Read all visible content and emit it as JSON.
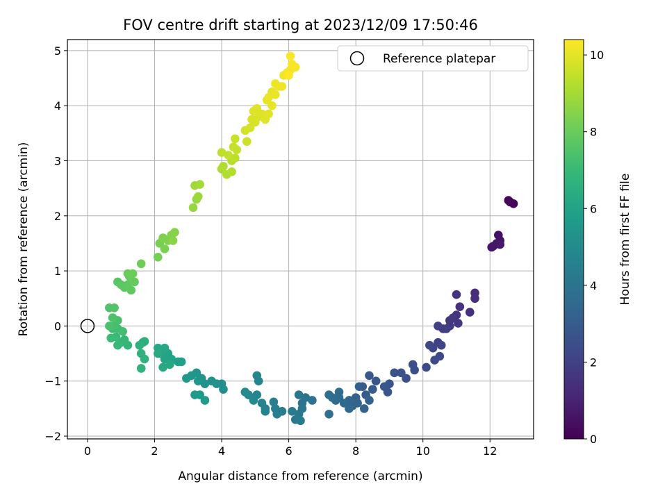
{
  "chart_data": {
    "type": "scatter",
    "title": "FOV centre drift starting at 2023/12/09 17:50:46",
    "xlabel": "Angular distance from reference (arcmin)",
    "ylabel": "Rotation from reference (arcmin)",
    "xlim": [
      -0.6,
      13.3
    ],
    "ylim": [
      -2.05,
      5.2
    ],
    "xticks": [
      0,
      2,
      4,
      6,
      8,
      10,
      12
    ],
    "yticks": [
      -2,
      -1,
      0,
      1,
      2,
      3,
      4,
      5
    ],
    "grid": true,
    "legend": {
      "placement": "top-right",
      "entries": [
        "Reference platepar"
      ]
    },
    "reference_point": {
      "name": "Reference platepar",
      "x": 0,
      "y": 0
    },
    "colorbar": {
      "label": "Hours from first FF file",
      "colormap": "viridis",
      "range": [
        0,
        10.4
      ],
      "ticks": [
        0,
        2,
        4,
        6,
        8,
        10
      ]
    },
    "points": [
      [
        12.6,
        2.25,
        0.1
      ],
      [
        12.7,
        2.22,
        0.15
      ],
      [
        12.55,
        2.28,
        0.2
      ],
      [
        12.25,
        1.65,
        0.45
      ],
      [
        12.3,
        1.55,
        0.5
      ],
      [
        12.1,
        1.45,
        0.55
      ],
      [
        12.2,
        1.5,
        0.6
      ],
      [
        12.05,
        1.43,
        0.65
      ],
      [
        12.3,
        1.48,
        0.7
      ],
      [
        11.55,
        0.6,
        1.3
      ],
      [
        11.55,
        0.5,
        1.35
      ],
      [
        11.4,
        0.25,
        1.4
      ],
      [
        11.1,
        0.35,
        1.45
      ],
      [
        11.0,
        0.57,
        1.5
      ],
      [
        11.0,
        0.2,
        1.6
      ],
      [
        10.9,
        0.15,
        1.65
      ],
      [
        10.8,
        0.1,
        1.7
      ],
      [
        11.05,
        0.05,
        1.75
      ],
      [
        10.8,
        0.0,
        1.8
      ],
      [
        10.6,
        -0.05,
        1.9
      ],
      [
        10.7,
        -0.05,
        1.95
      ],
      [
        10.45,
        0.0,
        2.0
      ],
      [
        10.45,
        -0.3,
        2.05
      ],
      [
        10.55,
        -0.35,
        2.1
      ],
      [
        10.3,
        -0.4,
        2.15
      ],
      [
        10.2,
        -0.35,
        2.2
      ],
      [
        10.5,
        -0.55,
        2.25
      ],
      [
        10.35,
        -0.62,
        2.3
      ],
      [
        10.1,
        -0.75,
        2.4
      ],
      [
        9.75,
        -0.8,
        2.45
      ],
      [
        9.7,
        -0.7,
        2.5
      ],
      [
        9.5,
        -0.95,
        2.55
      ],
      [
        9.35,
        -0.85,
        2.6
      ],
      [
        9.15,
        -0.85,
        2.65
      ],
      [
        9.0,
        -1.05,
        2.7
      ],
      [
        8.95,
        -1.2,
        2.75
      ],
      [
        8.85,
        -1.1,
        2.8
      ],
      [
        8.6,
        -1.0,
        2.85
      ],
      [
        8.4,
        -0.9,
        2.9
      ],
      [
        8.5,
        -1.15,
        2.95
      ],
      [
        8.3,
        -1.25,
        3.0
      ],
      [
        8.2,
        -1.1,
        3.05
      ],
      [
        8.1,
        -1.1,
        3.1
      ],
      [
        8.0,
        -1.3,
        3.15
      ],
      [
        8.4,
        -1.35,
        3.2
      ],
      [
        8.25,
        -1.5,
        3.25
      ],
      [
        8.05,
        -1.4,
        3.3
      ],
      [
        7.9,
        -1.45,
        3.35
      ],
      [
        7.8,
        -1.35,
        3.4
      ],
      [
        7.8,
        -1.5,
        3.45
      ],
      [
        7.65,
        -1.4,
        3.5
      ],
      [
        7.5,
        -1.3,
        3.55
      ],
      [
        7.4,
        -1.35,
        3.6
      ],
      [
        7.5,
        -1.2,
        3.65
      ],
      [
        7.3,
        -1.3,
        3.7
      ],
      [
        7.2,
        -1.25,
        3.75
      ],
      [
        7.2,
        -1.6,
        3.8
      ],
      [
        6.7,
        -1.35,
        3.9
      ],
      [
        6.5,
        -1.3,
        3.95
      ],
      [
        6.4,
        -1.4,
        4.0
      ],
      [
        6.3,
        -1.25,
        4.05
      ],
      [
        6.4,
        -1.5,
        4.1
      ],
      [
        6.3,
        -1.6,
        4.15
      ],
      [
        6.2,
        -1.7,
        4.2
      ],
      [
        6.35,
        -1.72,
        4.25
      ],
      [
        6.1,
        -1.55,
        4.3
      ],
      [
        5.8,
        -1.55,
        4.35
      ],
      [
        5.65,
        -1.6,
        4.4
      ],
      [
        5.55,
        -1.38,
        4.45
      ],
      [
        5.6,
        -1.5,
        4.5
      ],
      [
        5.3,
        -1.5,
        4.55
      ],
      [
        5.3,
        -1.55,
        4.6
      ],
      [
        5.2,
        -1.4,
        4.65
      ],
      [
        5.05,
        -1.25,
        4.7
      ],
      [
        5.1,
        -1.0,
        4.75
      ],
      [
        5.05,
        -0.9,
        4.8
      ],
      [
        4.95,
        -1.35,
        4.85
      ],
      [
        4.8,
        -1.25,
        4.9
      ],
      [
        4.7,
        -1.2,
        4.95
      ],
      [
        4.0,
        -1.05,
        5.1
      ],
      [
        4.05,
        -1.15,
        5.15
      ],
      [
        3.85,
        -1.05,
        5.2
      ],
      [
        3.7,
        -1.0,
        5.25
      ],
      [
        3.5,
        -1.05,
        5.3
      ],
      [
        3.4,
        -0.95,
        5.35
      ],
      [
        3.25,
        -0.85,
        5.4
      ],
      [
        3.3,
        -1.0,
        5.45
      ],
      [
        3.1,
        -0.9,
        5.5
      ],
      [
        2.95,
        -0.95,
        5.55
      ],
      [
        3.2,
        -1.25,
        5.6
      ],
      [
        3.35,
        -1.25,
        5.65
      ],
      [
        3.5,
        -1.35,
        5.7
      ],
      [
        2.8,
        -0.65,
        5.85
      ],
      [
        2.7,
        -0.65,
        5.9
      ],
      [
        2.5,
        -0.6,
        5.95
      ],
      [
        2.4,
        -0.5,
        6.0
      ],
      [
        2.3,
        -0.6,
        6.05
      ],
      [
        2.2,
        -0.5,
        6.1
      ],
      [
        2.1,
        -0.4,
        6.15
      ],
      [
        2.3,
        -0.4,
        6.2
      ],
      [
        2.45,
        -0.7,
        6.25
      ],
      [
        2.25,
        -0.75,
        6.3
      ],
      [
        2.1,
        -0.5,
        6.35
      ],
      [
        1.65,
        -0.3,
        6.5
      ],
      [
        1.7,
        -0.28,
        6.55
      ],
      [
        1.55,
        -0.35,
        6.6
      ],
      [
        1.6,
        -0.5,
        6.65
      ],
      [
        1.7,
        -0.6,
        6.7
      ],
      [
        1.6,
        -0.77,
        6.75
      ],
      [
        1.2,
        -0.35,
        6.85
      ],
      [
        1.1,
        -0.25,
        6.9
      ],
      [
        1.0,
        -0.3,
        6.95
      ],
      [
        0.9,
        -0.35,
        7.0
      ],
      [
        0.85,
        -0.2,
        7.05
      ],
      [
        0.7,
        -0.22,
        7.1
      ],
      [
        0.75,
        -0.05,
        7.15
      ],
      [
        0.9,
        -0.05,
        7.2
      ],
      [
        1.05,
        -0.1,
        7.25
      ],
      [
        0.8,
        0.0,
        7.3
      ],
      [
        0.9,
        0.1,
        7.35
      ],
      [
        0.65,
        0.0,
        7.4
      ],
      [
        0.75,
        0.15,
        7.45
      ],
      [
        0.65,
        0.33,
        7.5
      ],
      [
        0.8,
        0.33,
        7.55
      ],
      [
        0.9,
        0.8,
        7.65
      ],
      [
        1.0,
        0.75,
        7.7
      ],
      [
        1.1,
        0.7,
        7.75
      ],
      [
        1.2,
        0.75,
        7.8
      ],
      [
        1.3,
        0.65,
        7.85
      ],
      [
        1.4,
        0.8,
        7.9
      ],
      [
        1.25,
        0.9,
        7.95
      ],
      [
        1.2,
        0.95,
        8.0
      ],
      [
        1.35,
        0.95,
        8.05
      ],
      [
        1.6,
        1.13,
        8.1
      ],
      [
        2.1,
        1.25,
        8.2
      ],
      [
        2.15,
        1.5,
        8.25
      ],
      [
        2.3,
        1.4,
        8.3
      ],
      [
        2.25,
        1.6,
        8.35
      ],
      [
        2.4,
        1.55,
        8.4
      ],
      [
        2.5,
        1.65,
        8.45
      ],
      [
        2.6,
        1.7,
        8.5
      ],
      [
        2.55,
        1.55,
        8.55
      ],
      [
        3.15,
        2.15,
        8.75
      ],
      [
        3.25,
        2.3,
        8.8
      ],
      [
        3.3,
        2.35,
        8.85
      ],
      [
        3.2,
        2.55,
        8.9
      ],
      [
        3.35,
        2.57,
        8.95
      ],
      [
        4.0,
        2.85,
        9.1
      ],
      [
        4.05,
        2.9,
        9.15
      ],
      [
        4.15,
        2.75,
        9.2
      ],
      [
        4.3,
        2.8,
        9.25
      ],
      [
        4.3,
        3.0,
        9.3
      ],
      [
        4.4,
        3.05,
        9.35
      ],
      [
        4.0,
        3.15,
        9.4
      ],
      [
        4.2,
        3.1,
        9.45
      ],
      [
        4.35,
        3.25,
        9.5
      ],
      [
        4.45,
        3.2,
        9.55
      ],
      [
        4.4,
        3.4,
        9.6
      ],
      [
        4.75,
        3.35,
        9.65
      ],
      [
        4.7,
        3.55,
        9.7
      ],
      [
        4.85,
        3.6,
        9.75
      ],
      [
        5.0,
        3.7,
        9.8
      ],
      [
        4.9,
        3.75,
        9.82
      ],
      [
        5.1,
        3.8,
        9.85
      ],
      [
        4.95,
        3.9,
        9.88
      ],
      [
        5.05,
        3.95,
        9.9
      ],
      [
        5.2,
        3.85,
        9.92
      ],
      [
        5.3,
        3.75,
        9.95
      ],
      [
        5.4,
        3.85,
        9.97
      ],
      [
        5.35,
        4.1,
        10.0
      ],
      [
        5.5,
        4.0,
        10.02
      ],
      [
        5.5,
        4.25,
        10.05
      ],
      [
        5.6,
        4.2,
        10.08
      ],
      [
        5.4,
        4.15,
        10.1
      ],
      [
        5.7,
        4.35,
        10.12
      ],
      [
        5.6,
        4.4,
        10.15
      ],
      [
        5.8,
        4.35,
        10.18
      ],
      [
        5.85,
        4.55,
        10.2
      ],
      [
        5.95,
        4.6,
        10.22
      ],
      [
        6.05,
        4.65,
        10.25
      ],
      [
        6.2,
        4.7,
        10.3
      ],
      [
        6.1,
        4.75,
        10.32
      ],
      [
        6.05,
        4.9,
        10.35
      ],
      [
        6.0,
        4.55,
        10.4
      ]
    ]
  }
}
